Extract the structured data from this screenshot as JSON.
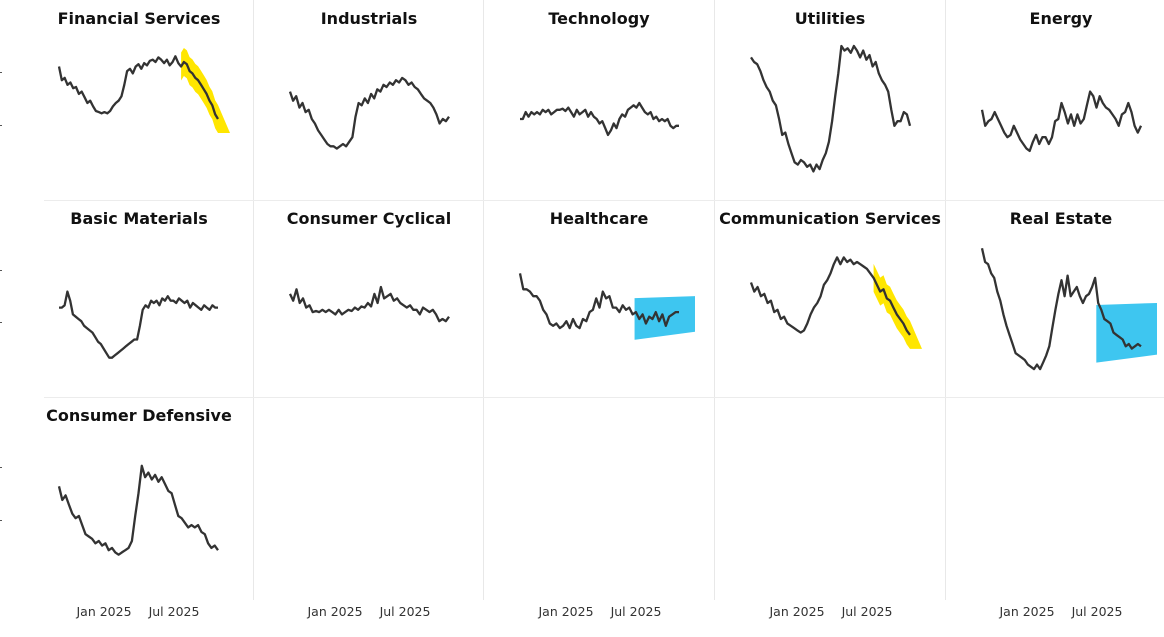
{
  "colors": {
    "line": "#333333",
    "highlight_yellow": "#FFE600",
    "highlight_blue": "#3EC6F0"
  },
  "chart_data": [
    {
      "type": "line",
      "title": "Financial Services",
      "highlight": "yellow",
      "values": [
        0.82,
        0.7,
        0.72,
        0.66,
        0.68,
        0.63,
        0.64,
        0.58,
        0.6,
        0.55,
        0.5,
        0.52,
        0.47,
        0.43,
        0.42,
        0.41,
        0.42,
        0.41,
        0.43,
        0.47,
        0.5,
        0.52,
        0.56,
        0.66,
        0.78,
        0.8,
        0.76,
        0.82,
        0.84,
        0.8,
        0.85,
        0.83,
        0.87,
        0.88,
        0.86,
        0.9,
        0.88,
        0.85,
        0.88,
        0.83,
        0.86,
        0.91,
        0.85,
        0.82,
        0.86,
        0.84,
        0.78,
        0.76,
        0.72,
        0.7,
        0.66,
        0.62,
        0.58,
        0.52,
        0.48,
        0.4,
        0.36
      ]
    },
    {
      "type": "line",
      "title": "Industrials",
      "values": [
        0.6,
        0.52,
        0.56,
        0.46,
        0.5,
        0.42,
        0.44,
        0.36,
        0.32,
        0.26,
        0.22,
        0.18,
        0.14,
        0.12,
        0.12,
        0.1,
        0.12,
        0.14,
        0.12,
        0.16,
        0.2,
        0.38,
        0.5,
        0.48,
        0.54,
        0.5,
        0.58,
        0.54,
        0.62,
        0.6,
        0.66,
        0.64,
        0.68,
        0.66,
        0.7,
        0.68,
        0.72,
        0.7,
        0.66,
        0.68,
        0.64,
        0.62,
        0.58,
        0.54,
        0.52,
        0.5,
        0.46,
        0.4,
        0.32,
        0.36,
        0.34,
        0.38
      ]
    },
    {
      "type": "line",
      "title": "Technology",
      "values": [
        0.36,
        0.36,
        0.42,
        0.38,
        0.42,
        0.4,
        0.42,
        0.4,
        0.44,
        0.42,
        0.44,
        0.4,
        0.42,
        0.44,
        0.44,
        0.45,
        0.43,
        0.46,
        0.42,
        0.38,
        0.44,
        0.4,
        0.42,
        0.44,
        0.38,
        0.42,
        0.38,
        0.36,
        0.32,
        0.34,
        0.28,
        0.22,
        0.26,
        0.32,
        0.28,
        0.36,
        0.4,
        0.38,
        0.44,
        0.46,
        0.48,
        0.46,
        0.5,
        0.46,
        0.42,
        0.4,
        0.42,
        0.36,
        0.38,
        0.34,
        0.36,
        0.34,
        0.36,
        0.3,
        0.28,
        0.3,
        0.3
      ]
    },
    {
      "type": "line",
      "title": "Utilities",
      "values": [
        0.9,
        0.86,
        0.84,
        0.78,
        0.7,
        0.64,
        0.6,
        0.52,
        0.48,
        0.36,
        0.22,
        0.24,
        0.14,
        0.06,
        -0.02,
        -0.04,
        0.0,
        -0.02,
        -0.06,
        -0.04,
        -0.1,
        -0.04,
        -0.08,
        0.0,
        0.06,
        0.16,
        0.34,
        0.56,
        0.76,
        1.0,
        0.96,
        0.98,
        0.94,
        1.0,
        0.96,
        0.9,
        0.96,
        0.88,
        0.92,
        0.82,
        0.86,
        0.76,
        0.7,
        0.66,
        0.6,
        0.44,
        0.3,
        0.34,
        0.34,
        0.42,
        0.4,
        0.3
      ]
    },
    {
      "type": "line",
      "title": "Energy",
      "values": [
        0.44,
        0.3,
        0.34,
        0.36,
        0.42,
        0.36,
        0.3,
        0.24,
        0.2,
        0.22,
        0.3,
        0.24,
        0.18,
        0.14,
        0.1,
        0.08,
        0.16,
        0.22,
        0.14,
        0.2,
        0.2,
        0.14,
        0.2,
        0.34,
        0.36,
        0.5,
        0.42,
        0.32,
        0.4,
        0.3,
        0.4,
        0.32,
        0.36,
        0.48,
        0.6,
        0.56,
        0.46,
        0.56,
        0.5,
        0.46,
        0.44,
        0.4,
        0.36,
        0.3,
        0.4,
        0.42,
        0.5,
        0.42,
        0.3,
        0.24,
        0.3
      ]
    },
    {
      "type": "line",
      "title": "Basic Materials",
      "values": [
        0.46,
        0.46,
        0.48,
        0.6,
        0.52,
        0.4,
        0.38,
        0.36,
        0.34,
        0.3,
        0.28,
        0.26,
        0.24,
        0.2,
        0.16,
        0.14,
        0.1,
        0.06,
        0.02,
        0.02,
        0.04,
        0.06,
        0.08,
        0.1,
        0.12,
        0.14,
        0.16,
        0.18,
        0.18,
        0.3,
        0.44,
        0.48,
        0.46,
        0.52,
        0.5,
        0.52,
        0.48,
        0.54,
        0.52,
        0.56,
        0.52,
        0.52,
        0.5,
        0.54,
        0.52,
        0.5,
        0.52,
        0.46,
        0.5,
        0.48,
        0.46,
        0.44,
        0.48,
        0.46,
        0.44,
        0.48,
        0.46,
        0.46
      ]
    },
    {
      "type": "line",
      "title": "Consumer Cyclical",
      "values": [
        0.58,
        0.52,
        0.62,
        0.5,
        0.54,
        0.46,
        0.48,
        0.42,
        0.43,
        0.42,
        0.44,
        0.42,
        0.44,
        0.42,
        0.4,
        0.44,
        0.4,
        0.42,
        0.44,
        0.43,
        0.46,
        0.44,
        0.47,
        0.46,
        0.5,
        0.47,
        0.58,
        0.5,
        0.64,
        0.54,
        0.56,
        0.58,
        0.52,
        0.54,
        0.5,
        0.48,
        0.46,
        0.48,
        0.44,
        0.44,
        0.4,
        0.46,
        0.44,
        0.42,
        0.44,
        0.4,
        0.34,
        0.36,
        0.34,
        0.38
      ]
    },
    {
      "type": "line",
      "title": "Healthcare",
      "highlight": "blue",
      "values": [
        0.76,
        0.62,
        0.62,
        0.6,
        0.56,
        0.56,
        0.52,
        0.44,
        0.4,
        0.32,
        0.3,
        0.32,
        0.28,
        0.3,
        0.34,
        0.28,
        0.36,
        0.3,
        0.28,
        0.36,
        0.34,
        0.42,
        0.44,
        0.54,
        0.46,
        0.6,
        0.54,
        0.56,
        0.46,
        0.46,
        0.42,
        0.48,
        0.44,
        0.46,
        0.4,
        0.42,
        0.36,
        0.4,
        0.32,
        0.38,
        0.36,
        0.42,
        0.34,
        0.4,
        0.3,
        0.38,
        0.4,
        0.42,
        0.42
      ]
    },
    {
      "type": "line",
      "title": "Communication Services",
      "highlight": "yellow",
      "values": [
        0.68,
        0.6,
        0.64,
        0.56,
        0.58,
        0.5,
        0.52,
        0.42,
        0.44,
        0.36,
        0.38,
        0.32,
        0.3,
        0.28,
        0.26,
        0.24,
        0.26,
        0.32,
        0.4,
        0.46,
        0.5,
        0.56,
        0.66,
        0.7,
        0.76,
        0.84,
        0.9,
        0.84,
        0.9,
        0.86,
        0.88,
        0.84,
        0.86,
        0.84,
        0.82,
        0.8,
        0.76,
        0.72,
        0.66,
        0.6,
        0.62,
        0.54,
        0.52,
        0.46,
        0.4,
        0.36,
        0.32,
        0.26,
        0.22
      ]
    },
    {
      "type": "line",
      "title": "Real Estate",
      "highlight": "blue",
      "values": [
        0.98,
        0.86,
        0.84,
        0.76,
        0.72,
        0.6,
        0.52,
        0.4,
        0.3,
        0.22,
        0.14,
        0.06,
        0.04,
        0.02,
        0.0,
        -0.04,
        -0.06,
        -0.08,
        -0.04,
        -0.08,
        -0.02,
        0.04,
        0.12,
        0.28,
        0.44,
        0.58,
        0.7,
        0.56,
        0.74,
        0.56,
        0.6,
        0.64,
        0.56,
        0.5,
        0.56,
        0.58,
        0.64,
        0.72,
        0.5,
        0.44,
        0.36,
        0.34,
        0.32,
        0.24,
        0.22,
        0.2,
        0.18,
        0.12,
        0.14,
        0.1,
        0.12,
        0.14,
        0.12
      ]
    },
    {
      "type": "line",
      "title": "Consumer Defensive",
      "values": [
        0.62,
        0.5,
        0.54,
        0.46,
        0.38,
        0.34,
        0.36,
        0.28,
        0.2,
        0.18,
        0.16,
        0.12,
        0.14,
        0.1,
        0.12,
        0.06,
        0.08,
        0.04,
        0.02,
        0.04,
        0.06,
        0.08,
        0.14,
        0.36,
        0.56,
        0.8,
        0.7,
        0.74,
        0.68,
        0.72,
        0.66,
        0.7,
        0.64,
        0.58,
        0.56,
        0.46,
        0.36,
        0.34,
        0.3,
        0.26,
        0.28,
        0.26,
        0.28,
        0.22,
        0.2,
        0.12,
        0.08,
        0.1,
        0.06
      ]
    }
  ],
  "x_axis": {
    "tick_labels": [
      "Jan 2025",
      "Jul 2025"
    ]
  }
}
